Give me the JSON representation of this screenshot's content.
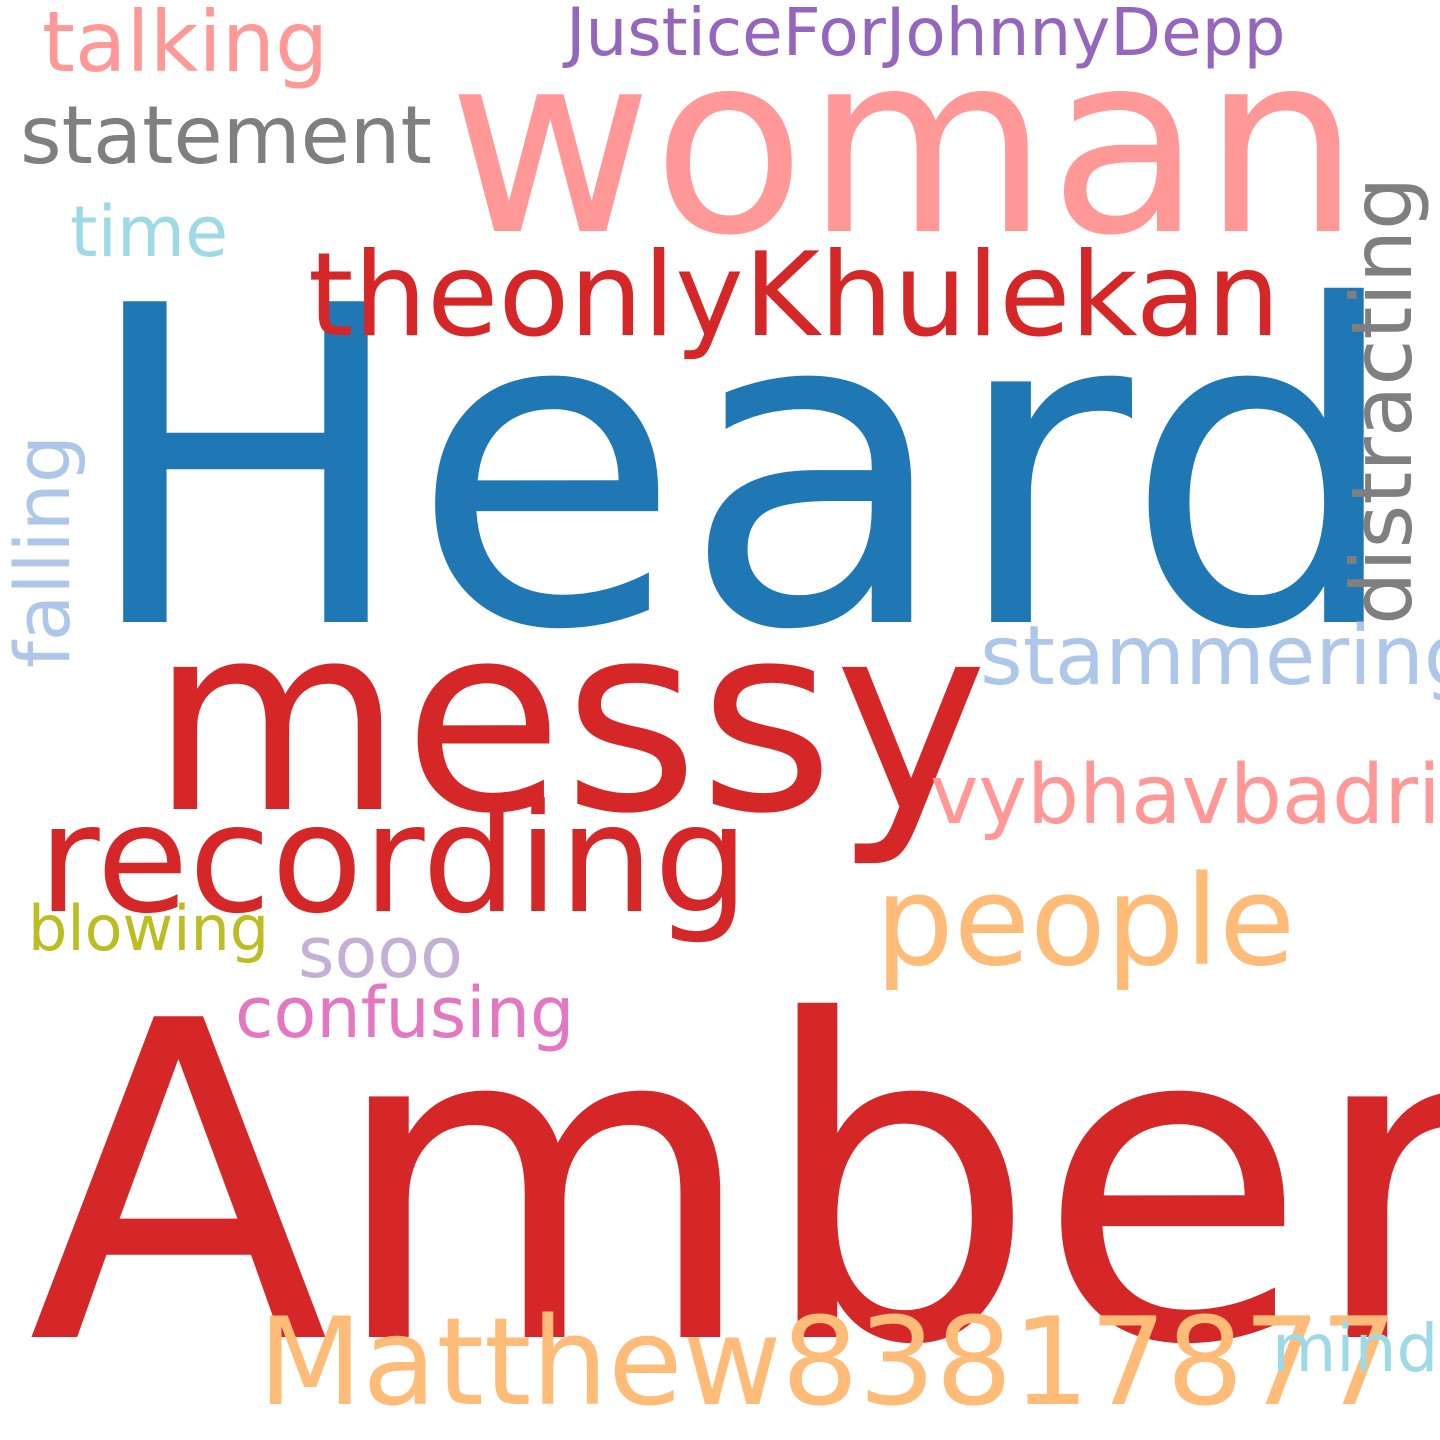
{
  "words": {
    "amber": {
      "text": "Amber",
      "color": "#d62728"
    },
    "heard": {
      "text": "Heard",
      "color": "#1f77b4"
    },
    "messy": {
      "text": "messy",
      "color": "#d62728"
    },
    "woman": {
      "text": "woman",
      "color": "#ff9896"
    },
    "recording": {
      "text": "recording",
      "color": "#d62728"
    },
    "theonly": {
      "text": "theonlyKhulekan",
      "color": "#d62728"
    },
    "people": {
      "text": "people",
      "color": "#ffbb78"
    },
    "matthew": {
      "text": "Matthew83817877",
      "color": "#ffbb78"
    },
    "justice": {
      "text": "JusticeForJohnnyDepp",
      "color": "#9467bd"
    },
    "talking": {
      "text": "talking",
      "color": "#ff9896"
    },
    "statement": {
      "text": "statement",
      "color": "#7f7f7f"
    },
    "time": {
      "text": "time",
      "color": "#9edae5"
    },
    "stammering": {
      "text": "stammering",
      "color": "#aec7e8"
    },
    "vybhavbadri": {
      "text": "vybhavbadri",
      "color": "#ff9896"
    },
    "sooo": {
      "text": "sooo",
      "color": "#c5b0d5"
    },
    "blowing": {
      "text": "blowing",
      "color": "#bcbd22"
    },
    "confusing": {
      "text": "confusing",
      "color": "#e377c2"
    },
    "mind": {
      "text": "mind",
      "color": "#9edae5"
    },
    "distracting": {
      "text": "distracting",
      "color": "#7f7f7f"
    },
    "falling": {
      "text": "falling",
      "color": "#aec7e8"
    }
  }
}
